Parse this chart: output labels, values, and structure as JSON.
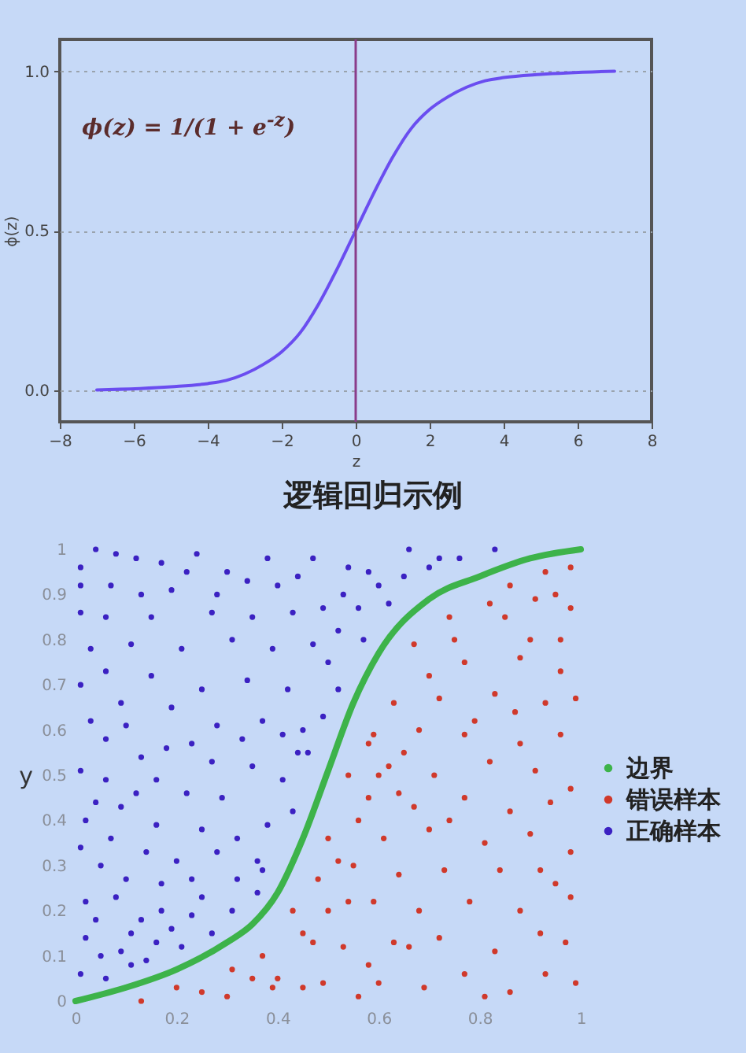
{
  "chart_data": [
    {
      "type": "line",
      "xlabel": "z",
      "ylabel": "ϕ(z)",
      "x": [
        -7,
        -5,
        -4,
        -3.5,
        -3,
        -2.5,
        -2,
        -1.5,
        -1,
        -0.5,
        0,
        0.5,
        1,
        1.5,
        2,
        2.5,
        3,
        3.5,
        4,
        5,
        7
      ],
      "series": [
        {
          "color": "#6a4df0",
          "values": [
            0.0,
            0.01,
            0.02,
            0.03,
            0.05,
            0.08,
            0.12,
            0.18,
            0.27,
            0.38,
            0.5,
            0.62,
            0.73,
            0.82,
            0.88,
            0.92,
            0.95,
            0.97,
            0.98,
            0.99,
            1.0
          ]
        }
      ],
      "xlim": [
        -8,
        8
      ],
      "xticks": [
        -8,
        -6,
        -4,
        -2,
        0,
        2,
        4,
        6,
        8
      ],
      "ylim": [
        -0.1,
        1.1
      ],
      "yticks": [
        {
          "value": 0,
          "label": "0.0"
        },
        {
          "value": 0.5,
          "label": "0.5"
        },
        {
          "value": 1,
          "label": "1.0"
        }
      ],
      "grid": "y",
      "ref_lines": [
        {
          "axis": "x",
          "value": 0,
          "color": "#8a3c8a"
        }
      ],
      "annotations": [
        "ϕ(z) = 1/(1 + e$^{-z}$)"
      ]
    },
    {
      "type": "scatter",
      "title": "逻辑回归示例",
      "ylabel": "y",
      "series": [
        {
          "name": "边界",
          "type": "line",
          "color": "#3db34a",
          "x": [
            0,
            0.1,
            0.2,
            0.3,
            0.35,
            0.4,
            0.45,
            0.5,
            0.55,
            0.6,
            0.7,
            0.8,
            0.9,
            1
          ],
          "values": [
            0,
            0.03,
            0.07,
            0.13,
            0.17,
            0.24,
            0.36,
            0.51,
            0.66,
            0.77,
            0.89,
            0.94,
            0.98,
            1.0
          ]
        },
        {
          "name": "错误样本",
          "color": "#d0392b",
          "marker": "circle",
          "x": [
            0.13,
            0.2,
            0.31,
            0.3,
            0.37,
            0.39,
            0.43,
            0.47,
            0.49,
            0.54,
            0.58,
            0.52,
            0.56,
            0.5,
            0.54,
            0.58,
            0.45,
            0.56,
            0.86,
            0.93,
            0.98,
            0.74,
            0.82,
            0.91,
            0.98,
            0.67,
            0.77,
            0.88,
            0.96,
            0.63,
            0.72,
            0.83,
            0.93,
            0.99,
            0.59,
            0.68,
            0.77,
            0.88,
            0.96,
            0.62,
            0.71,
            0.82,
            0.91,
            0.98,
            0.58,
            0.67,
            0.77,
            0.86,
            0.94,
            0.61,
            0.7,
            0.81,
            0.9,
            0.98,
            0.64,
            0.73,
            0.84,
            0.95,
            0.59,
            0.68,
            0.78,
            0.88,
            0.98,
            0.63,
            0.72,
            0.83,
            0.92,
            0.97,
            0.6,
            0.69,
            0.77,
            0.86,
            0.93,
            0.99,
            0.81,
            0.64,
            0.75,
            0.85,
            0.9,
            0.95,
            0.7,
            0.65,
            0.55,
            0.5,
            0.45,
            0.4,
            0.35,
            0.25,
            0.6,
            0.66,
            0.74,
            0.79,
            0.87,
            0.92,
            0.96,
            0.53,
            0.48
          ],
          "values": [
            0.0,
            0.03,
            0.07,
            0.01,
            0.1,
            0.03,
            0.2,
            0.13,
            0.04,
            0.22,
            0.08,
            0.31,
            0.4,
            0.36,
            0.5,
            0.57,
            0.03,
            0.01,
            0.92,
            0.95,
            0.96,
            0.85,
            0.88,
            0.89,
            0.87,
            0.79,
            0.75,
            0.76,
            0.73,
            0.66,
            0.67,
            0.68,
            0.66,
            0.67,
            0.59,
            0.6,
            0.59,
            0.57,
            0.59,
            0.52,
            0.5,
            0.53,
            0.51,
            0.47,
            0.45,
            0.43,
            0.45,
            0.42,
            0.44,
            0.36,
            0.38,
            0.35,
            0.37,
            0.33,
            0.28,
            0.29,
            0.29,
            0.26,
            0.22,
            0.2,
            0.22,
            0.2,
            0.23,
            0.13,
            0.14,
            0.11,
            0.15,
            0.13,
            0.04,
            0.03,
            0.06,
            0.02,
            0.06,
            0.04,
            0.01,
            0.46,
            0.8,
            0.85,
            0.8,
            0.9,
            0.72,
            0.55,
            0.3,
            0.2,
            0.15,
            0.05,
            0.05,
            0.02,
            0.5,
            0.12,
            0.4,
            0.62,
            0.64,
            0.29,
            0.8,
            0.12,
            0.27
          ]
        },
        {
          "name": "正确样本",
          "color": "#3b21c2",
          "marker": "circle",
          "x": [
            0.04,
            0.01,
            0.12,
            0.24,
            0.01,
            0.07,
            0.13,
            0.19,
            0.3,
            0.38,
            0.47,
            0.53,
            0.01,
            0.06,
            0.15,
            0.27,
            0.35,
            0.43,
            0.52,
            0.03,
            0.11,
            0.21,
            0.31,
            0.39,
            0.47,
            0.57,
            0.01,
            0.06,
            0.15,
            0.25,
            0.34,
            0.42,
            0.52,
            0.03,
            0.1,
            0.19,
            0.28,
            0.37,
            0.45,
            0.49,
            0.01,
            0.06,
            0.13,
            0.16,
            0.22,
            0.29,
            0.35,
            0.41,
            0.02,
            0.09,
            0.16,
            0.25,
            0.32,
            0.38,
            0.43,
            0.01,
            0.07,
            0.14,
            0.2,
            0.28,
            0.36,
            0.37,
            0.02,
            0.08,
            0.13,
            0.19,
            0.25,
            0.31,
            0.36,
            0.02,
            0.09,
            0.14,
            0.21,
            0.27,
            0.01,
            0.06,
            0.11,
            0.58,
            0.66,
            0.65,
            0.72,
            0.76,
            0.83,
            0.62,
            0.05,
            0.1,
            0.17,
            0.23,
            0.32,
            0.04,
            0.11,
            0.17,
            0.23,
            0.05,
            0.16,
            0.44,
            0.46,
            0.5,
            0.54,
            0.6,
            0.09,
            0.23,
            0.33,
            0.41,
            0.06,
            0.18,
            0.27,
            0.12,
            0.04,
            0.4,
            0.34,
            0.22,
            0.08,
            0.17,
            0.28,
            0.44,
            0.49,
            0.56,
            0.7
          ],
          "values": [
            1.0,
            0.96,
            0.98,
            0.99,
            0.92,
            0.92,
            0.9,
            0.91,
            0.95,
            0.98,
            0.98,
            0.9,
            0.86,
            0.85,
            0.85,
            0.86,
            0.85,
            0.86,
            0.82,
            0.78,
            0.79,
            0.78,
            0.8,
            0.78,
            0.79,
            0.8,
            0.7,
            0.73,
            0.72,
            0.69,
            0.71,
            0.69,
            0.69,
            0.62,
            0.61,
            0.65,
            0.61,
            0.62,
            0.6,
            0.63,
            0.51,
            0.49,
            0.54,
            0.49,
            0.46,
            0.45,
            0.52,
            0.49,
            0.4,
            0.43,
            0.39,
            0.38,
            0.36,
            0.39,
            0.42,
            0.34,
            0.36,
            0.33,
            0.31,
            0.33,
            0.31,
            0.29,
            0.22,
            0.23,
            0.18,
            0.16,
            0.23,
            0.2,
            0.24,
            0.14,
            0.11,
            0.09,
            0.12,
            0.15,
            0.06,
            0.05,
            0.08,
            0.95,
            1.0,
            0.94,
            0.98,
            0.98,
            1.0,
            0.88,
            0.3,
            0.27,
            0.26,
            0.27,
            0.27,
            0.18,
            0.15,
            0.2,
            0.19,
            0.1,
            0.13,
            0.55,
            0.55,
            0.75,
            0.96,
            0.92,
            0.66,
            0.57,
            0.58,
            0.59,
            0.58,
            0.56,
            0.53,
            0.46,
            0.44,
            0.92,
            0.93,
            0.95,
            0.99,
            0.97,
            0.9,
            0.94,
            0.87,
            0.87,
            0.96
          ]
        }
      ],
      "xlim": [
        0,
        1
      ],
      "xticks": [
        0,
        0.2,
        0.4,
        0.6,
        0.8,
        1
      ],
      "ylim": [
        0,
        1
      ],
      "yticks": [
        0,
        0.1,
        0.2,
        0.3,
        0.4,
        0.5,
        0.6,
        0.7,
        0.8,
        0.9,
        1
      ],
      "legend": "right"
    }
  ]
}
